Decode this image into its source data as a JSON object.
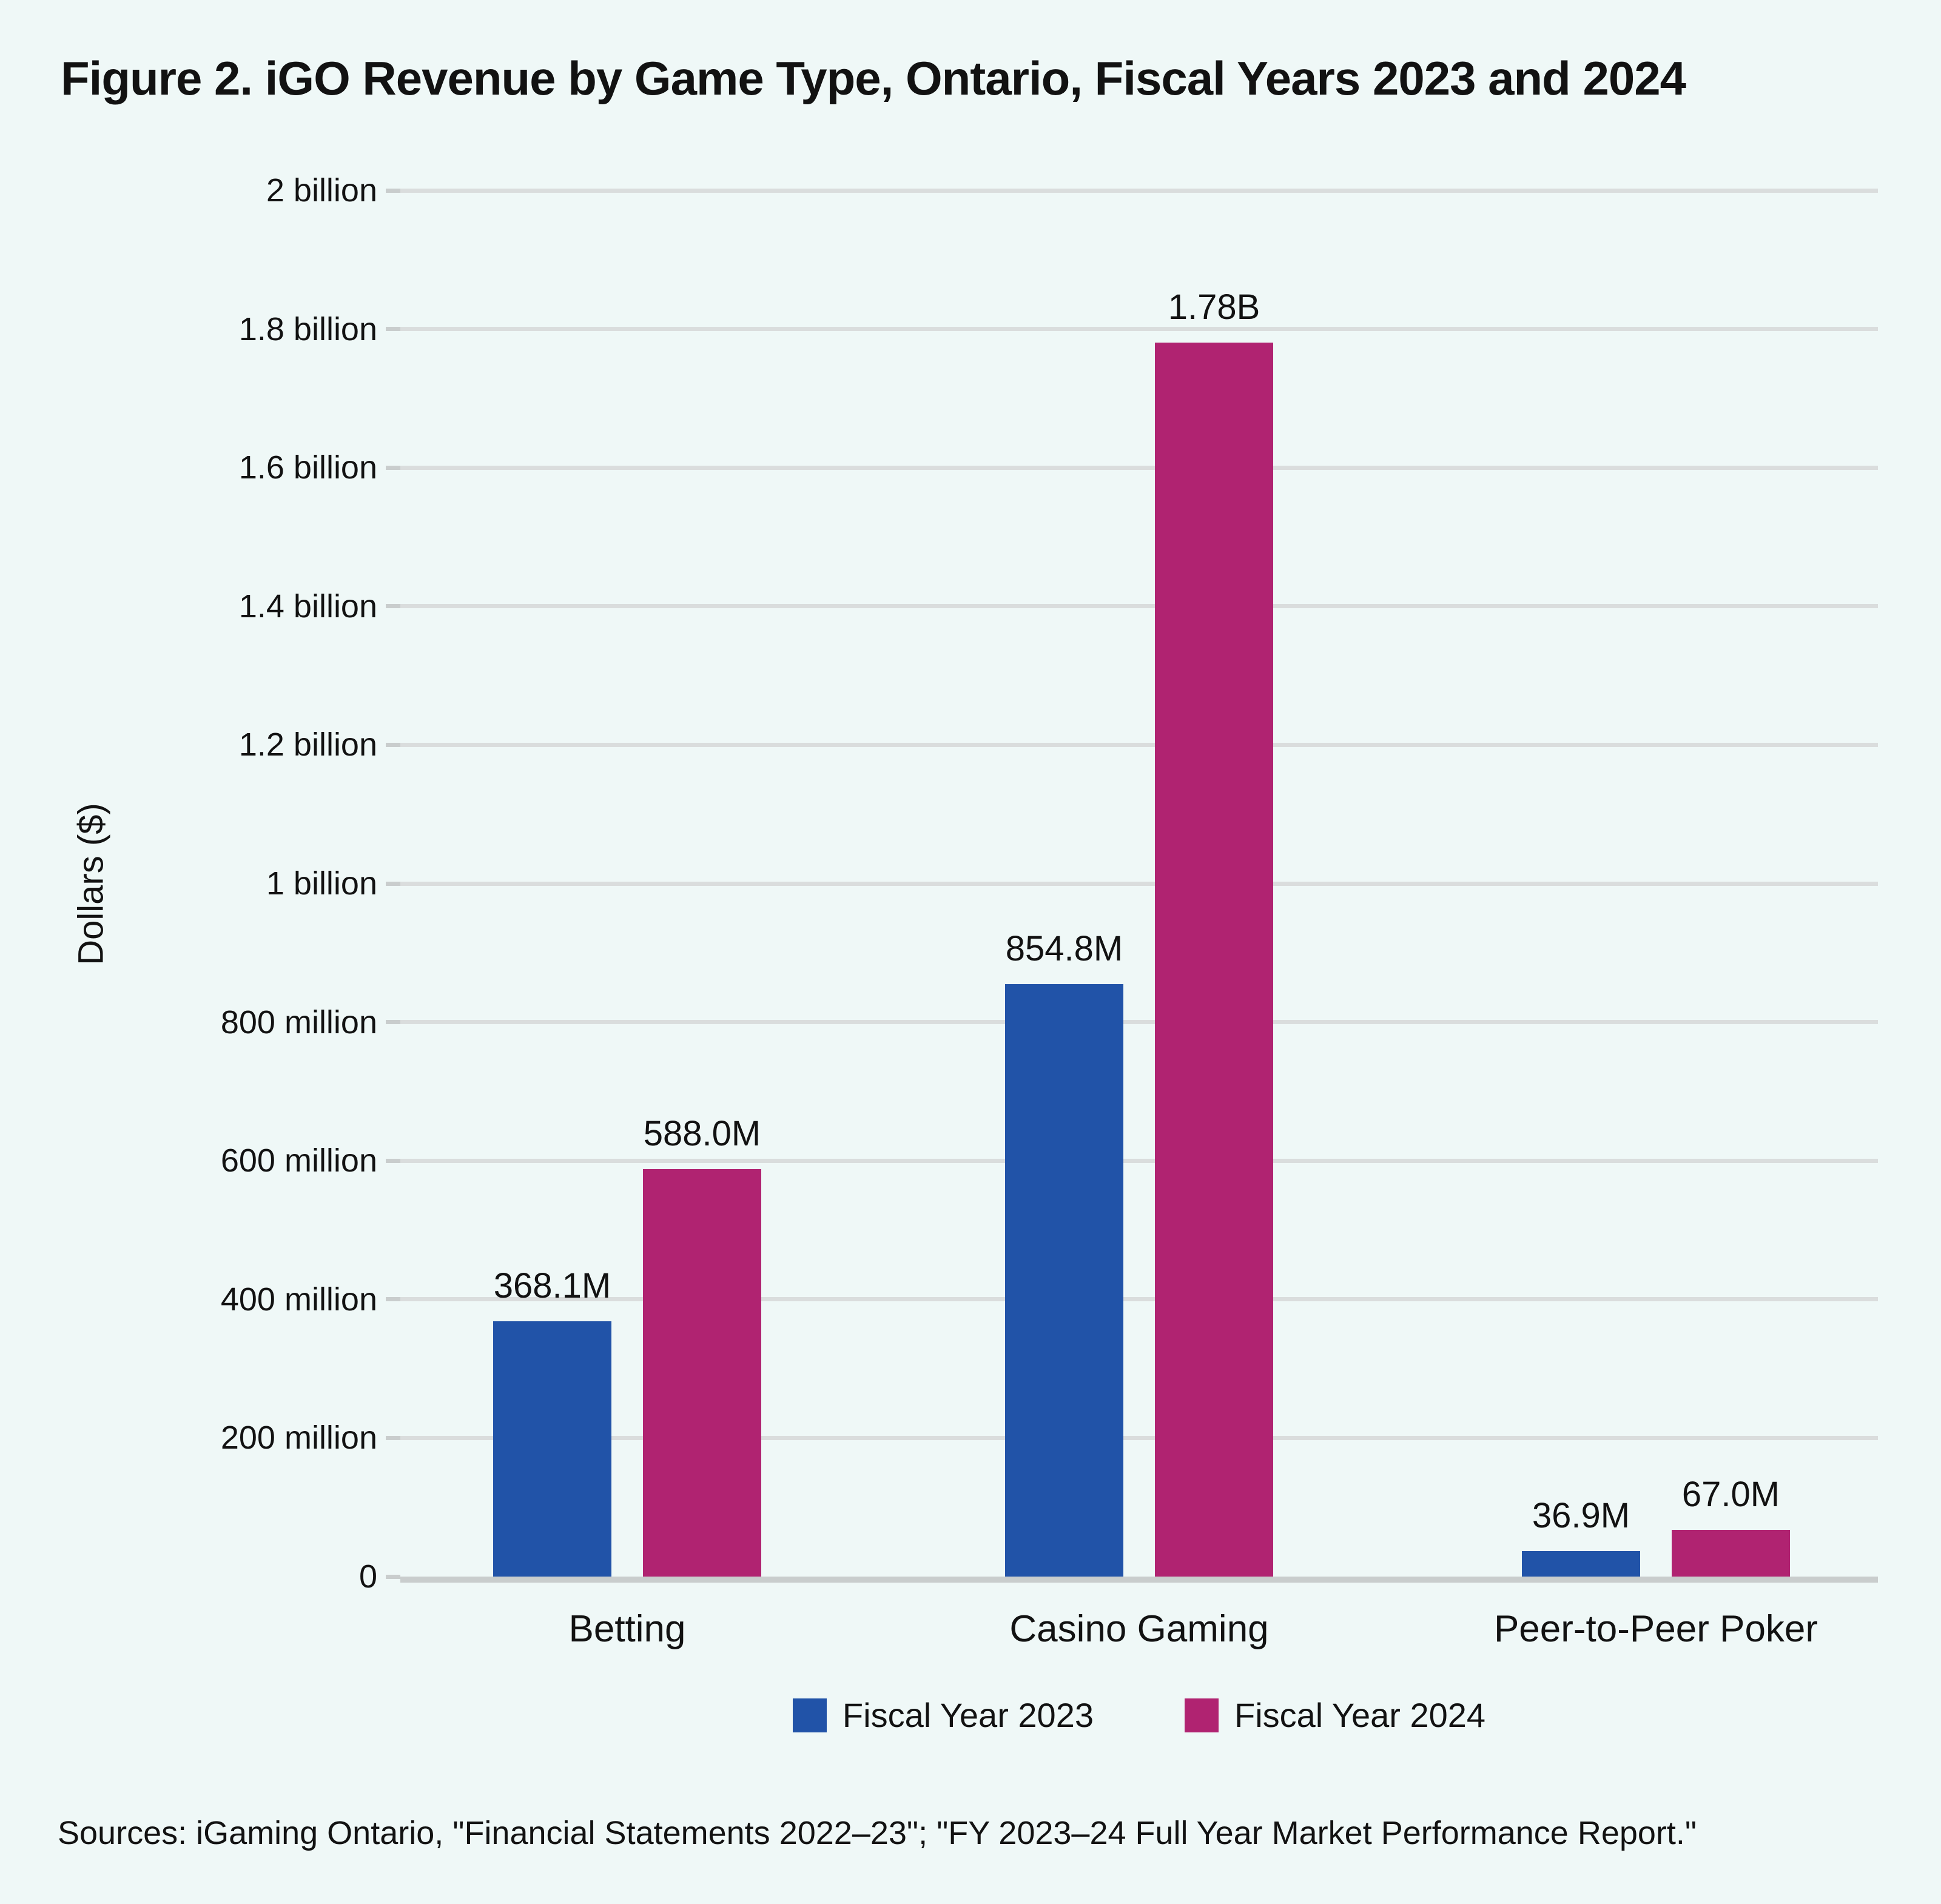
{
  "title": "Figure 2. iGO Revenue by Game Type, Ontario, Fiscal Years 2023 and 2024",
  "y_axis": {
    "label": "Dollars ($)",
    "ticks": [
      {
        "label": "0",
        "value": 0
      },
      {
        "label": "200 million",
        "value": 200000000
      },
      {
        "label": "400 million",
        "value": 400000000
      },
      {
        "label": "600 million",
        "value": 600000000
      },
      {
        "label": "800 million",
        "value": 800000000
      },
      {
        "label": "1 billion",
        "value": 1000000000
      },
      {
        "label": "1.2 billion",
        "value": 1200000000
      },
      {
        "label": "1.4 billion",
        "value": 1400000000
      },
      {
        "label": "1.6 billion",
        "value": 1600000000
      },
      {
        "label": "1.8 billion",
        "value": 1800000000
      },
      {
        "label": "2 billion",
        "value": 2000000000
      }
    ]
  },
  "chart_data": {
    "type": "bar",
    "title": "Figure 2. iGO Revenue by Game Type, Ontario, Fiscal Years 2023 and 2024",
    "categories": [
      "Betting",
      "Casino Gaming",
      "Peer-to-Peer Poker"
    ],
    "series": [
      {
        "name": "Fiscal Year 2023",
        "color": "#2153a8",
        "values": [
          368100000,
          854800000,
          36900000
        ],
        "labels": [
          "368.1M",
          "854.8M",
          "36.9M"
        ]
      },
      {
        "name": "Fiscal Year 2024",
        "color": "#b02371",
        "values": [
          588000000,
          1780000000,
          67000000
        ],
        "labels": [
          "588.0M",
          "1.78B",
          "67.0M"
        ]
      }
    ],
    "xlabel": "",
    "ylabel": "Dollars ($)",
    "ylim": [
      0,
      2000000000
    ],
    "ytick_interval": 200000000,
    "grid": "horizontal",
    "legend_position": "bottom"
  },
  "source_note": "Sources: iGaming Ontario, \"Financial Statements 2022–23\"; \"FY 2023–24 Full Year Market Performance Report.\"",
  "colors": {
    "background": "#eff8f7",
    "gridline": "#dadddd",
    "baseline": "#c9cdcd",
    "text": "#121212",
    "fiscal_year_2023": "#2153a8",
    "fiscal_year_2024": "#b02371"
  }
}
